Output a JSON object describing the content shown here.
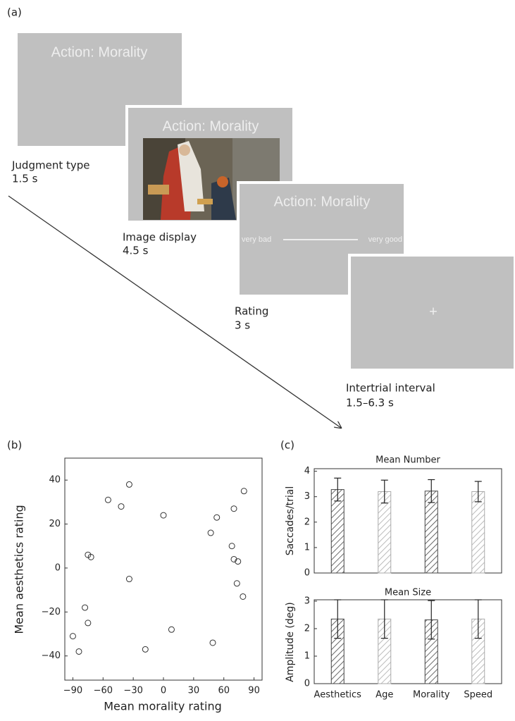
{
  "panel_labels": [
    "(a)",
    "(b)",
    "(c)"
  ],
  "diagram": {
    "screens": [
      {
        "title": "Action: Morality"
      },
      {
        "title": "Action: Morality"
      },
      {
        "title": "Action: Morality",
        "scale_left": "very bad",
        "scale_right": "very good"
      },
      {
        "title": "+"
      }
    ],
    "stages": [
      {
        "name": "Judgment type",
        "duration": "1.5 s"
      },
      {
        "name": "Image display",
        "duration": "4.5 s"
      },
      {
        "name": "Rating",
        "duration": "3 s"
      },
      {
        "name": "Intertrial interval",
        "duration": "1.5–6.3 s"
      }
    ]
  },
  "chart_data": [
    {
      "type": "scatter",
      "xlabel": "Mean morality rating",
      "ylabel": "Mean aesthetics rating",
      "x": [
        -34,
        -55,
        -42,
        0,
        80,
        53,
        70,
        47,
        -75,
        -72,
        68,
        70,
        74,
        -34,
        73,
        79,
        -78,
        -75,
        8,
        -18,
        49,
        -90,
        -84
      ],
      "y": [
        38,
        31,
        28,
        24,
        35,
        23,
        27,
        16,
        6,
        5,
        10,
        4,
        3,
        -5,
        -7,
        -13,
        -18,
        -25,
        -28,
        -37,
        -34,
        -31,
        -38
      ],
      "color": "#333333",
      "xlim": [
        -98,
        98
      ],
      "ylim": [
        -51,
        50
      ],
      "xticks": [
        {
          "value": -90,
          "label": "−90"
        },
        {
          "value": -60,
          "label": "−60"
        },
        {
          "value": -30,
          "label": "−30"
        },
        0,
        30,
        60,
        90
      ],
      "yticks": [
        {
          "value": -40,
          "label": "−40"
        },
        {
          "value": -20,
          "label": "−20"
        },
        0,
        20,
        40
      ]
    },
    {
      "type": "bar",
      "title": "Mean Number",
      "ylabel": "Saccades/trial",
      "categories": [
        null,
        null,
        null,
        null
      ],
      "values": [
        3.28,
        3.2,
        3.22,
        3.2
      ],
      "errors": [
        0.45,
        0.45,
        0.45,
        0.4
      ],
      "colors": [
        "#444444",
        "#aaaaaa",
        "#444444",
        "#aaaaaa"
      ],
      "ylim": [
        0,
        4.1
      ],
      "yticks": [
        0,
        1,
        2,
        3,
        4
      ]
    },
    {
      "type": "bar",
      "title": "Mean Size",
      "ylabel": "Amplitude (deg)",
      "categories": [
        "Aesthetics",
        "Age",
        "Morality",
        "Speed"
      ],
      "values": [
        2.35,
        2.35,
        2.32,
        2.35
      ],
      "errors": [
        0.7,
        0.7,
        0.7,
        0.7
      ],
      "colors": [
        "#444444",
        "#aaaaaa",
        "#444444",
        "#aaaaaa"
      ],
      "ylim": [
        0,
        3.05
      ],
      "yticks": [
        0,
        1,
        2,
        3
      ]
    }
  ]
}
